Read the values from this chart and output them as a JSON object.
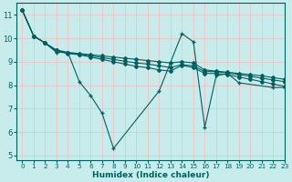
{
  "xlabel": "Humidex (Indice chaleur)",
  "ylabel": "",
  "xlim": [
    -0.5,
    23
  ],
  "ylim": [
    4.8,
    11.5
  ],
  "yticks": [
    5,
    6,
    7,
    8,
    9,
    10,
    11
  ],
  "xticks": [
    0,
    1,
    2,
    3,
    4,
    5,
    6,
    7,
    8,
    9,
    10,
    11,
    12,
    13,
    14,
    15,
    16,
    17,
    18,
    19,
    20,
    21,
    22,
    23
  ],
  "bg_color": "#c8ecec",
  "grid_color": "#e8c8c8",
  "line_color": "#006060",
  "series": [
    [
      11.2,
      10.1,
      9.8,
      9.4,
      9.4,
      8.15,
      7.55,
      6.8,
      5.3,
      null,
      null,
      null,
      7.75,
      null,
      10.2,
      9.85,
      6.2,
      8.4,
      8.5,
      8.1,
      null,
      null,
      7.9,
      7.9
    ],
    [
      11.2,
      10.1,
      9.8,
      9.45,
      9.35,
      9.3,
      9.2,
      9.1,
      9.0,
      8.9,
      8.8,
      8.75,
      8.65,
      8.6,
      8.85,
      8.75,
      8.5,
      8.5,
      8.45,
      8.35,
      8.25,
      8.15,
      8.05,
      7.95
    ],
    [
      11.2,
      10.1,
      9.8,
      9.48,
      9.38,
      9.32,
      9.25,
      9.18,
      9.1,
      9.02,
      8.95,
      8.9,
      8.83,
      8.75,
      8.88,
      8.82,
      8.58,
      8.58,
      8.52,
      8.45,
      8.38,
      8.3,
      8.22,
      8.15
    ],
    [
      11.2,
      10.1,
      9.8,
      9.5,
      9.4,
      9.35,
      9.3,
      9.25,
      9.2,
      9.15,
      9.1,
      9.05,
      9.0,
      8.95,
      9.0,
      8.95,
      8.65,
      8.6,
      8.55,
      8.5,
      8.45,
      8.4,
      8.32,
      8.25
    ]
  ]
}
